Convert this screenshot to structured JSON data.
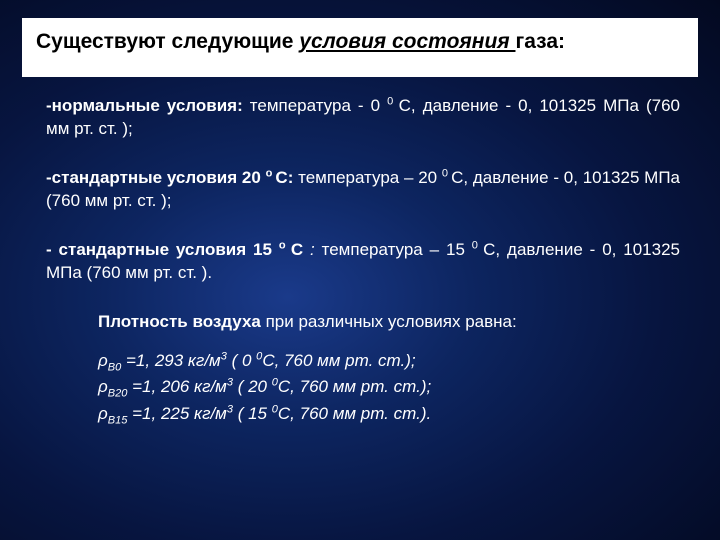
{
  "title": {
    "pre": "Существуют следующие ",
    "u": "условия состояния ",
    "post": " газа:"
  },
  "cond1": {
    "label": "-нормальные условия:",
    "text1": "  температура - 0 ",
    "sup1": "0 ",
    "text2": "С, давление - 0, 101325 МПа (760 мм рт. ст. );"
  },
  "cond2": {
    "label": "-стандартные условия 20 ",
    "labelSup": "о ",
    "label2": "С:",
    "text1": "  температура – 20 ",
    "sup1": "0 ",
    "text2": "С, давление - 0, 101325 МПа (760 мм рт. ст. );"
  },
  "cond3": {
    "label": "- стандартные условия 15 ",
    "labelSup": "о ",
    "label2": "С ",
    "colon": ":",
    "text1": "  температура – 15 ",
    "sup1": "0 ",
    "text2": "С, давление - 0, 101325 МПа (760 мм рт. ст. )."
  },
  "densityTitle": {
    "b": "Плотность воздуха",
    "rest": " при различных условиях равна:"
  },
  "rho": "ρ",
  "d1": {
    "sub": "В0",
    "val": " =1, 293 кг/м",
    "sup": "3",
    "rest": " ( 0 ",
    "sup2": "0",
    "rest2": "С, 760 мм рт. ст.);"
  },
  "d2": {
    "sub": "В20",
    "val": " =1, 206 кг/м",
    "sup": "3",
    "rest": " ( 20 ",
    "sup2": "0",
    "rest2": "С, 760 мм рт. ст.);"
  },
  "d3": {
    "sub": "В15",
    "val": " =1, 225 кг/м",
    "sup": "3",
    "rest": " ( 15 ",
    "sup2": "0",
    "rest2": "С, 760 мм рт. ст.)."
  }
}
